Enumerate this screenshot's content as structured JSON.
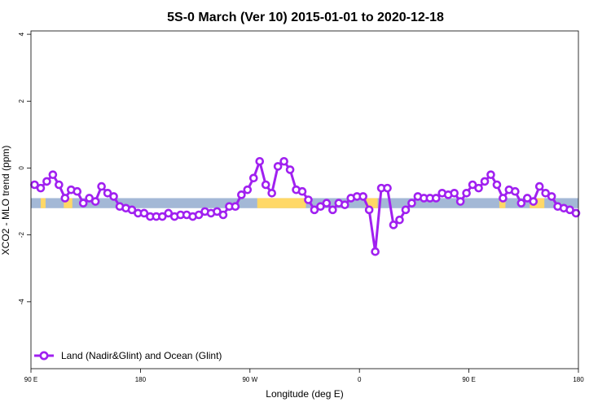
{
  "chart_data": {
    "type": "line",
    "title": "5S-0 March (Ver 10)   2015-01-01 to 2020-12-18",
    "xlabel": "Longitude (deg E)",
    "ylabel": "XCO2 - MLO trend (ppm)",
    "xlim": [
      90,
      540
    ],
    "ylim": [
      -6,
      4.1
    ],
    "x_ticks": [
      {
        "value": 90,
        "label": "90 E"
      },
      {
        "value": 180,
        "label": "180"
      },
      {
        "value": 270,
        "label": "90 W"
      },
      {
        "value": 360,
        "label": "0"
      },
      {
        "value": 450,
        "label": "90 E"
      },
      {
        "value": 540,
        "label": "180"
      }
    ],
    "y_ticks": [
      {
        "value": 4,
        "label": "4"
      },
      {
        "value": 2,
        "label": "2"
      },
      {
        "value": 0,
        "label": "0"
      },
      {
        "value": -2,
        "label": "-2"
      },
      {
        "value": -4,
        "label": "-4"
      }
    ],
    "legend": {
      "position": "bottom-left"
    },
    "colors": {
      "series": "#a020f0",
      "ocean": "#a3b8d6",
      "land": "#ffd866"
    },
    "surface_band": {
      "y_top": -0.9,
      "y_bottom": -1.2,
      "land_segments": [
        [
          98,
          102
        ],
        [
          117,
          124
        ],
        [
          276,
          316
        ],
        [
          365,
          375
        ],
        [
          475,
          480
        ],
        [
          500,
          512
        ]
      ]
    },
    "series": [
      {
        "name": "Land (Nadir&Glint) and Ocean (Glint)",
        "x": [
          93,
          98,
          103,
          108,
          113,
          118,
          123,
          128,
          133,
          138,
          143,
          148,
          153,
          158,
          163,
          168,
          173,
          178,
          183,
          188,
          193,
          198,
          203,
          208,
          213,
          218,
          223,
          228,
          233,
          238,
          243,
          248,
          253,
          258,
          263,
          268,
          273,
          278,
          283,
          288,
          293,
          298,
          303,
          308,
          313,
          318,
          323,
          328,
          333,
          338,
          343,
          348,
          353,
          358,
          363,
          368,
          373,
          378,
          383,
          388,
          393,
          398,
          403,
          408,
          413,
          418,
          423,
          428,
          433,
          438,
          443,
          448,
          453,
          458,
          463,
          468,
          473,
          478,
          483,
          488,
          493,
          498,
          503,
          508,
          513,
          518,
          523,
          528,
          533,
          538
        ],
        "values": [
          -0.5,
          -0.6,
          -0.4,
          -0.2,
          -0.5,
          -0.9,
          -0.65,
          -0.7,
          -1.05,
          -0.9,
          -1.0,
          -0.55,
          -0.75,
          -0.85,
          -1.15,
          -1.2,
          -1.25,
          -1.35,
          -1.35,
          -1.45,
          -1.45,
          -1.45,
          -1.35,
          -1.45,
          -1.4,
          -1.4,
          -1.45,
          -1.4,
          -1.3,
          -1.35,
          -1.3,
          -1.4,
          -1.15,
          -1.15,
          -0.8,
          -0.65,
          -0.3,
          0.2,
          -0.5,
          -0.75,
          0.05,
          0.2,
          -0.05,
          -0.65,
          -0.7,
          -0.95,
          -1.25,
          -1.15,
          -1.05,
          -1.25,
          -1.05,
          -1.1,
          -0.9,
          -0.85,
          -0.85,
          -1.25,
          -2.5,
          -0.6,
          -0.6,
          -1.7,
          -1.55,
          -1.25,
          -1.05,
          -0.85,
          -0.9,
          -0.9,
          -0.9,
          -0.75,
          -0.8,
          -0.75,
          -1.0,
          -0.75,
          -0.5,
          -0.6,
          -0.4,
          -0.2,
          -0.5,
          -0.9,
          -0.65,
          -0.7,
          -1.05,
          -0.9,
          -1.0,
          -0.55,
          -0.75,
          -0.85,
          -1.15,
          -1.2,
          -1.25,
          -1.35
        ]
      }
    ]
  }
}
